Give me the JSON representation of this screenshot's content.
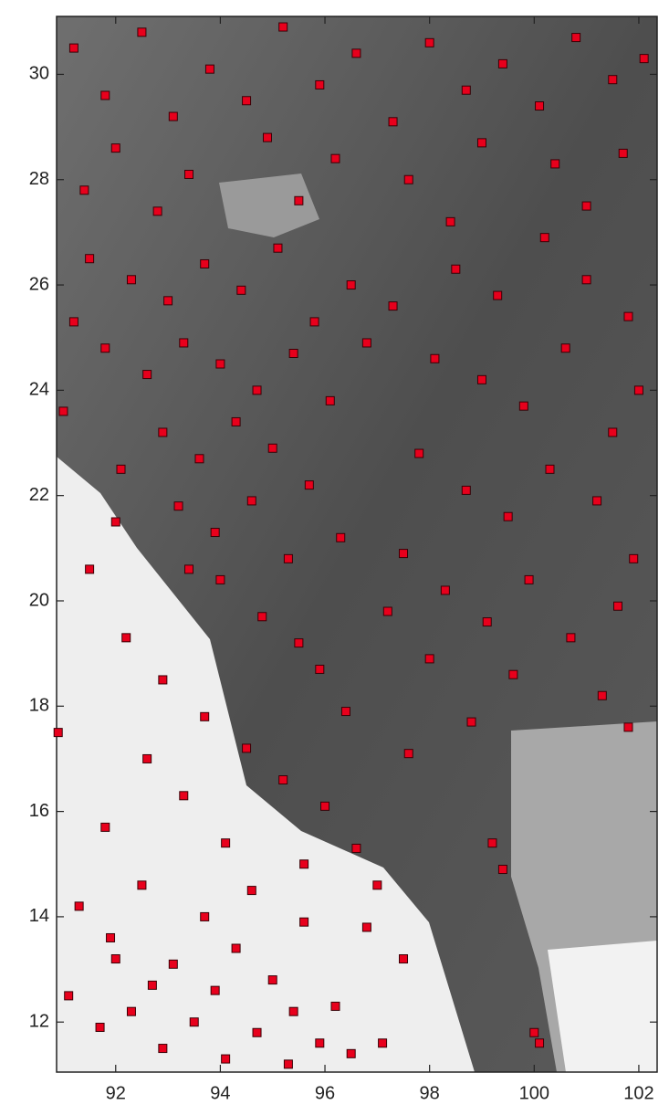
{
  "chart_data": {
    "type": "scatter",
    "color": "#e8001c",
    "xlim": [
      90.87,
      102.35
    ],
    "ylim": [
      11.05,
      31.1
    ],
    "xticks": [
      92,
      94,
      96,
      98,
      100,
      102
    ],
    "yticks": [
      12,
      14,
      16,
      18,
      20,
      22,
      24,
      26,
      28,
      30
    ],
    "x": [
      91.2,
      91.8,
      92.5,
      93.1,
      93.8,
      94.5,
      95.2,
      95.9,
      96.6,
      97.3,
      98.0,
      98.7,
      99.4,
      100.1,
      100.8,
      101.5,
      102.1,
      92.0,
      93.4,
      94.9,
      96.2,
      97.6,
      99.0,
      100.4,
      101.7,
      91.4,
      92.8,
      95.5,
      98.4,
      101.0,
      91.5,
      92.3,
      93.0,
      93.7,
      94.4,
      95.1,
      95.8,
      96.5,
      91.8,
      92.6,
      93.3,
      94.0,
      94.7,
      95.4,
      96.1,
      92.9,
      93.6,
      94.3,
      95.0,
      95.7,
      93.2,
      93.9,
      94.6,
      95.3,
      94.0,
      94.8,
      95.5,
      91.2,
      91.0,
      96.8,
      97.3,
      92.1,
      96.3,
      93.4,
      95.9,
      98.5,
      99.3,
      100.2,
      101.0,
      101.8,
      98.1,
      99.0,
      99.8,
      100.6,
      101.5,
      102.0,
      97.8,
      98.7,
      99.5,
      100.3,
      101.2,
      101.9,
      97.5,
      98.3,
      99.1,
      99.9,
      100.7,
      101.6,
      98.0,
      99.6,
      101.3,
      97.2,
      98.8,
      97.6,
      99.2,
      99.4,
      100.0,
      100.1,
      101.8,
      91.5,
      92.2,
      92.9,
      93.7,
      94.5,
      95.2,
      96.0,
      92.6,
      93.3,
      91.8,
      94.1,
      95.6,
      96.6,
      97.0,
      90.9,
      92.0,
      96.4,
      91.3,
      91.9,
      92.5,
      93.1,
      93.7,
      94.3,
      95.0,
      95.6,
      96.2,
      91.1,
      91.7,
      92.3,
      92.9,
      93.5,
      94.1,
      94.7,
      95.3,
      95.9,
      96.5,
      92.0,
      92.7,
      93.9,
      94.6,
      95.4,
      97.1,
      97.5,
      96.8
    ],
    "y": [
      30.5,
      29.6,
      30.8,
      29.2,
      30.1,
      29.5,
      30.9,
      29.8,
      30.4,
      29.1,
      30.6,
      29.7,
      30.2,
      29.4,
      30.7,
      29.9,
      30.3,
      28.6,
      28.1,
      28.8,
      28.4,
      28.0,
      28.7,
      28.3,
      28.5,
      27.8,
      27.4,
      27.6,
      27.2,
      27.5,
      26.5,
      26.1,
      25.7,
      26.4,
      25.9,
      26.7,
      25.3,
      26.0,
      24.8,
      24.3,
      24.9,
      24.5,
      24.0,
      24.7,
      23.8,
      23.2,
      22.7,
      23.4,
      22.9,
      22.2,
      21.8,
      21.3,
      21.9,
      20.8,
      20.4,
      19.7,
      19.2,
      25.3,
      23.6,
      24.9,
      25.6,
      22.5,
      21.2,
      20.6,
      18.7,
      26.3,
      25.8,
      26.9,
      26.1,
      25.4,
      24.6,
      24.2,
      23.7,
      24.8,
      23.2,
      24.0,
      22.8,
      22.1,
      21.6,
      22.5,
      21.9,
      20.8,
      20.9,
      20.2,
      19.6,
      20.4,
      19.3,
      19.9,
      18.9,
      18.6,
      18.2,
      19.8,
      17.7,
      17.1,
      15.4,
      14.9,
      11.8,
      11.6,
      17.6,
      20.6,
      19.3,
      18.5,
      17.8,
      17.2,
      16.6,
      16.1,
      17.0,
      16.3,
      15.7,
      15.4,
      15.0,
      15.3,
      14.6,
      17.5,
      21.5,
      17.9,
      14.2,
      13.6,
      14.6,
      13.1,
      14.0,
      13.4,
      12.8,
      13.9,
      12.3,
      12.5,
      11.9,
      12.2,
      11.5,
      12.0,
      11.3,
      11.8,
      11.2,
      11.6,
      11.4,
      13.2,
      12.7,
      12.6,
      14.5,
      12.2,
      11.6,
      13.2,
      13.8
    ]
  }
}
